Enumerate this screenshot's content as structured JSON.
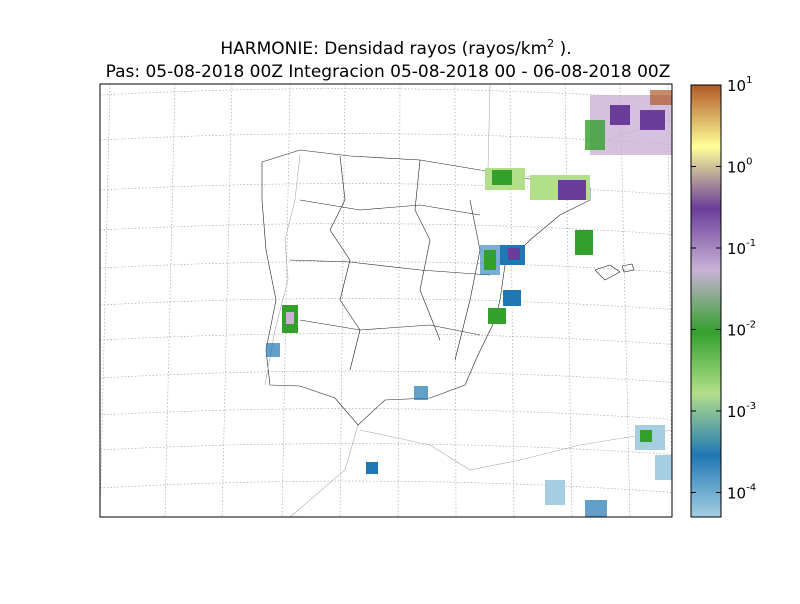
{
  "chart_data": {
    "type": "map",
    "title": {
      "text": "HARMONIE: Densidad rayos  (rayos/km",
      "superscript": "2",
      "suffix": " )."
    },
    "subtitle": "Pas: 05-08-2018 00Z Integracion 05-08-2018 00 - 06-08-2018 00Z",
    "colorbar": {
      "log_scale": true,
      "lim": [
        5e-05,
        10
      ],
      "colors": [
        "#a6cee3",
        "#1f78b4",
        "#b2df8a",
        "#33a02c",
        "#cab2d6",
        "#6a3d9a",
        "#ffff99",
        "#b15928"
      ],
      "ticks": [
        {
          "value": 0.0001,
          "label": "10",
          "exponent": "-4"
        },
        {
          "value": 0.001,
          "label": "10",
          "exponent": "-3"
        },
        {
          "value": 0.01,
          "label": "10",
          "exponent": "-2"
        },
        {
          "value": 0.1,
          "label": "10",
          "exponent": "-1"
        },
        {
          "value": 1,
          "label": "10",
          "exponent": "0"
        },
        {
          "value": 10,
          "label": "10",
          "exponent": "1"
        }
      ]
    }
  }
}
